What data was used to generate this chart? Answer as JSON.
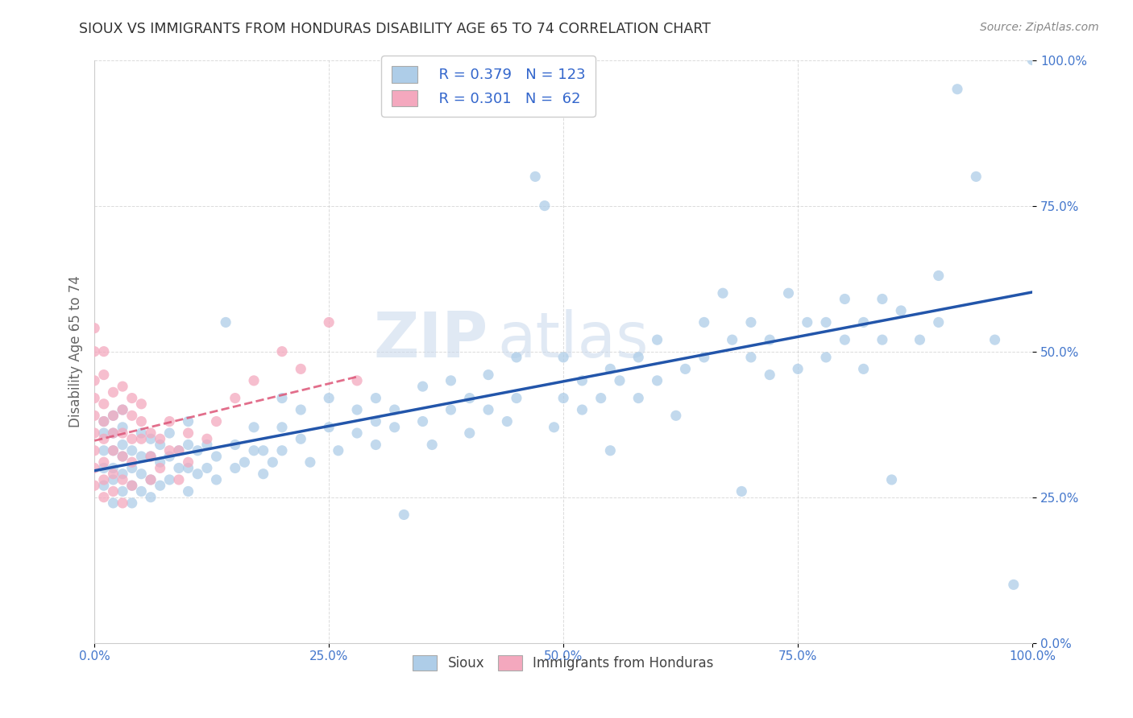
{
  "title": "SIOUX VS IMMIGRANTS FROM HONDURAS DISABILITY AGE 65 TO 74 CORRELATION CHART",
  "source": "Source: ZipAtlas.com",
  "ylabel": "Disability Age 65 to 74",
  "xlim": [
    0.0,
    1.0
  ],
  "ylim": [
    0.0,
    1.0
  ],
  "xticks": [
    0.0,
    0.25,
    0.5,
    0.75,
    1.0
  ],
  "yticks": [
    0.0,
    0.25,
    0.5,
    0.75,
    1.0
  ],
  "xticklabels": [
    "0.0%",
    "25.0%",
    "50.0%",
    "75.0%",
    "100.0%"
  ],
  "yticklabels": [
    "0.0%",
    "25.0%",
    "50.0%",
    "75.0%",
    "100.0%"
  ],
  "sioux_R": 0.379,
  "sioux_N": 123,
  "honduras_R": 0.301,
  "honduras_N": 62,
  "sioux_color": "#aecde8",
  "honduras_color": "#f4a8be",
  "sioux_line_color": "#2255aa",
  "honduras_line_color": "#dd5577",
  "sioux_scatter": [
    [
      0.01,
      0.27
    ],
    [
      0.01,
      0.3
    ],
    [
      0.01,
      0.33
    ],
    [
      0.01,
      0.36
    ],
    [
      0.01,
      0.38
    ],
    [
      0.02,
      0.24
    ],
    [
      0.02,
      0.28
    ],
    [
      0.02,
      0.3
    ],
    [
      0.02,
      0.33
    ],
    [
      0.02,
      0.36
    ],
    [
      0.02,
      0.39
    ],
    [
      0.03,
      0.26
    ],
    [
      0.03,
      0.29
    ],
    [
      0.03,
      0.32
    ],
    [
      0.03,
      0.34
    ],
    [
      0.03,
      0.37
    ],
    [
      0.03,
      0.4
    ],
    [
      0.04,
      0.24
    ],
    [
      0.04,
      0.27
    ],
    [
      0.04,
      0.3
    ],
    [
      0.04,
      0.33
    ],
    [
      0.05,
      0.26
    ],
    [
      0.05,
      0.29
    ],
    [
      0.05,
      0.32
    ],
    [
      0.05,
      0.36
    ],
    [
      0.06,
      0.25
    ],
    [
      0.06,
      0.28
    ],
    [
      0.06,
      0.32
    ],
    [
      0.06,
      0.35
    ],
    [
      0.07,
      0.27
    ],
    [
      0.07,
      0.31
    ],
    [
      0.07,
      0.34
    ],
    [
      0.08,
      0.28
    ],
    [
      0.08,
      0.32
    ],
    [
      0.08,
      0.36
    ],
    [
      0.09,
      0.3
    ],
    [
      0.09,
      0.33
    ],
    [
      0.1,
      0.26
    ],
    [
      0.1,
      0.3
    ],
    [
      0.1,
      0.34
    ],
    [
      0.1,
      0.38
    ],
    [
      0.11,
      0.29
    ],
    [
      0.11,
      0.33
    ],
    [
      0.12,
      0.3
    ],
    [
      0.12,
      0.34
    ],
    [
      0.13,
      0.28
    ],
    [
      0.13,
      0.32
    ],
    [
      0.14,
      0.55
    ],
    [
      0.15,
      0.3
    ],
    [
      0.15,
      0.34
    ],
    [
      0.16,
      0.31
    ],
    [
      0.17,
      0.33
    ],
    [
      0.17,
      0.37
    ],
    [
      0.18,
      0.29
    ],
    [
      0.18,
      0.33
    ],
    [
      0.19,
      0.31
    ],
    [
      0.2,
      0.33
    ],
    [
      0.2,
      0.37
    ],
    [
      0.2,
      0.42
    ],
    [
      0.22,
      0.35
    ],
    [
      0.22,
      0.4
    ],
    [
      0.23,
      0.31
    ],
    [
      0.25,
      0.37
    ],
    [
      0.25,
      0.42
    ],
    [
      0.26,
      0.33
    ],
    [
      0.28,
      0.36
    ],
    [
      0.28,
      0.4
    ],
    [
      0.3,
      0.34
    ],
    [
      0.3,
      0.38
    ],
    [
      0.3,
      0.42
    ],
    [
      0.32,
      0.37
    ],
    [
      0.32,
      0.4
    ],
    [
      0.33,
      0.22
    ],
    [
      0.35,
      0.38
    ],
    [
      0.35,
      0.44
    ],
    [
      0.36,
      0.34
    ],
    [
      0.38,
      0.4
    ],
    [
      0.38,
      0.45
    ],
    [
      0.4,
      0.36
    ],
    [
      0.4,
      0.42
    ],
    [
      0.42,
      0.4
    ],
    [
      0.42,
      0.46
    ],
    [
      0.44,
      0.38
    ],
    [
      0.45,
      0.42
    ],
    [
      0.45,
      0.49
    ],
    [
      0.47,
      0.8
    ],
    [
      0.48,
      0.75
    ],
    [
      0.49,
      0.37
    ],
    [
      0.5,
      0.42
    ],
    [
      0.5,
      0.49
    ],
    [
      0.52,
      0.4
    ],
    [
      0.52,
      0.45
    ],
    [
      0.54,
      0.42
    ],
    [
      0.55,
      0.33
    ],
    [
      0.55,
      0.47
    ],
    [
      0.56,
      0.45
    ],
    [
      0.58,
      0.42
    ],
    [
      0.58,
      0.49
    ],
    [
      0.6,
      0.45
    ],
    [
      0.6,
      0.52
    ],
    [
      0.62,
      0.39
    ],
    [
      0.63,
      0.47
    ],
    [
      0.65,
      0.49
    ],
    [
      0.65,
      0.55
    ],
    [
      0.67,
      0.6
    ],
    [
      0.68,
      0.52
    ],
    [
      0.69,
      0.26
    ],
    [
      0.7,
      0.49
    ],
    [
      0.7,
      0.55
    ],
    [
      0.72,
      0.46
    ],
    [
      0.72,
      0.52
    ],
    [
      0.74,
      0.6
    ],
    [
      0.75,
      0.47
    ],
    [
      0.76,
      0.55
    ],
    [
      0.78,
      0.49
    ],
    [
      0.78,
      0.55
    ],
    [
      0.8,
      0.52
    ],
    [
      0.8,
      0.59
    ],
    [
      0.82,
      0.47
    ],
    [
      0.82,
      0.55
    ],
    [
      0.84,
      0.52
    ],
    [
      0.84,
      0.59
    ],
    [
      0.85,
      0.28
    ],
    [
      0.86,
      0.57
    ],
    [
      0.88,
      0.52
    ],
    [
      0.9,
      0.55
    ],
    [
      0.9,
      0.63
    ],
    [
      0.92,
      0.95
    ],
    [
      0.94,
      0.8
    ],
    [
      0.96,
      0.52
    ],
    [
      0.98,
      0.1
    ],
    [
      1.0,
      1.0
    ]
  ],
  "honduras_scatter": [
    [
      0.0,
      0.27
    ],
    [
      0.0,
      0.3
    ],
    [
      0.0,
      0.33
    ],
    [
      0.0,
      0.36
    ],
    [
      0.0,
      0.39
    ],
    [
      0.0,
      0.42
    ],
    [
      0.0,
      0.45
    ],
    [
      0.0,
      0.5
    ],
    [
      0.0,
      0.54
    ],
    [
      0.01,
      0.25
    ],
    [
      0.01,
      0.28
    ],
    [
      0.01,
      0.31
    ],
    [
      0.01,
      0.35
    ],
    [
      0.01,
      0.38
    ],
    [
      0.01,
      0.41
    ],
    [
      0.01,
      0.46
    ],
    [
      0.01,
      0.5
    ],
    [
      0.02,
      0.26
    ],
    [
      0.02,
      0.29
    ],
    [
      0.02,
      0.33
    ],
    [
      0.02,
      0.36
    ],
    [
      0.02,
      0.39
    ],
    [
      0.02,
      0.43
    ],
    [
      0.03,
      0.24
    ],
    [
      0.03,
      0.28
    ],
    [
      0.03,
      0.32
    ],
    [
      0.03,
      0.36
    ],
    [
      0.03,
      0.4
    ],
    [
      0.03,
      0.44
    ],
    [
      0.04,
      0.27
    ],
    [
      0.04,
      0.31
    ],
    [
      0.04,
      0.35
    ],
    [
      0.04,
      0.39
    ],
    [
      0.04,
      0.42
    ],
    [
      0.05,
      0.35
    ],
    [
      0.05,
      0.38
    ],
    [
      0.05,
      0.41
    ],
    [
      0.06,
      0.28
    ],
    [
      0.06,
      0.32
    ],
    [
      0.06,
      0.36
    ],
    [
      0.07,
      0.3
    ],
    [
      0.07,
      0.35
    ],
    [
      0.08,
      0.33
    ],
    [
      0.08,
      0.38
    ],
    [
      0.09,
      0.28
    ],
    [
      0.09,
      0.33
    ],
    [
      0.1,
      0.31
    ],
    [
      0.1,
      0.36
    ],
    [
      0.12,
      0.35
    ],
    [
      0.13,
      0.38
    ],
    [
      0.15,
      0.42
    ],
    [
      0.17,
      0.45
    ],
    [
      0.2,
      0.5
    ],
    [
      0.22,
      0.47
    ],
    [
      0.25,
      0.55
    ],
    [
      0.28,
      0.45
    ]
  ],
  "watermark_zip": "ZIP",
  "watermark_atlas": "atlas",
  "background_color": "#ffffff",
  "grid_color": "#cccccc",
  "title_color": "#333333",
  "axis_label_color": "#666666",
  "tick_label_color": "#4477cc",
  "legend_text_color": "#000000",
  "stat_color": "#3366cc"
}
